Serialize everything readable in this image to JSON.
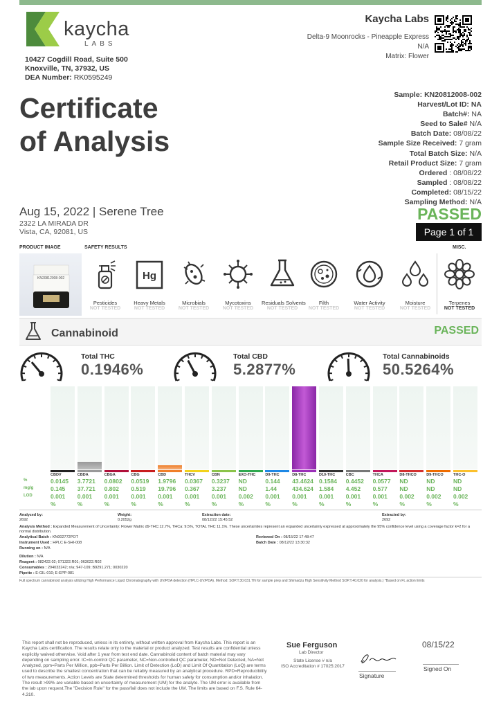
{
  "header": {
    "logo_text": "kaycha",
    "logo_sub": "LABS",
    "address_line1": "10427 Cogdill Road, Suite 500",
    "address_line2": "Knoxville, TN, 37932, US",
    "dea_label": "DEA Number:",
    "dea_value": "RK0595249",
    "lab_name": "Kaycha Labs",
    "product_name": "Delta-9 Moonrocks - Pineapple Express",
    "product_na": "N/A",
    "matrix": "Matrix: Flower"
  },
  "title": {
    "line1": "Certificate",
    "line2": "of Analysis"
  },
  "client": {
    "line": "Aug 15, 2022 | Serene Tree",
    "addr1": "2322 LA MIRADA DR",
    "addr2": "Vista, CA, 92081, US"
  },
  "sample_info": [
    {
      "label": "Sample:",
      "value": "KN20812008-002",
      "bold_value": true
    },
    {
      "label": "Harvest/Lot ID:",
      "value": "NA",
      "bold_value": true
    },
    {
      "label": "Batch#:",
      "value": "NA"
    },
    {
      "label": "Seed to Sale#",
      "value": "N/A"
    },
    {
      "label": "Batch Date:",
      "value": "08/08/22"
    },
    {
      "label": "Sample Size Received:",
      "value": "7 gram"
    },
    {
      "label": "Total Batch Size:",
      "value": "N/A"
    },
    {
      "label": "Retail Product Size:",
      "value": "7 gram"
    },
    {
      "label": "Ordered",
      "value": ": 08/08/22"
    },
    {
      "label": "Sampled",
      "value": ": 08/08/22"
    },
    {
      "label": "Completed:",
      "value": "08/15/22"
    },
    {
      "label": "Sampling Method:",
      "value": "N/A"
    }
  ],
  "status": {
    "overall": "PASSED",
    "page": "Page 1 of 1"
  },
  "sections": {
    "product_image": "PRODUCT IMAGE",
    "safety_results": "SAFETY RESULTS",
    "misc": "MISC."
  },
  "product_label": "KN20812008-002",
  "safety": [
    {
      "name": "Pesticides",
      "status": "NOT TESTED",
      "icon": "pesticide-spray-icon"
    },
    {
      "name": "Heavy Metals",
      "status": "NOT TESTED",
      "icon": "heavy-metals-hg-icon",
      "symbol": "Hg"
    },
    {
      "name": "Microbials",
      "status": "NOT TESTED",
      "icon": "microbe-icon"
    },
    {
      "name": "Mycotoxins",
      "status": "NOT TESTED",
      "icon": "mycotoxin-icon"
    },
    {
      "name": "Residuals Solvents",
      "status": "NOT TESTED",
      "icon": "flask-icon"
    },
    {
      "name": "Filth",
      "status": "NOT TESTED",
      "icon": "petri-dish-icon"
    },
    {
      "name": "Water Activity",
      "status": "NOT TESTED",
      "icon": "water-drop-icon"
    },
    {
      "name": "Moisture",
      "status": "NOT TESTED",
      "icon": "moisture-drops-icon"
    },
    {
      "name": "Terpenes",
      "status": "NOT TESTED",
      "icon": "terpene-flower-icon"
    }
  ],
  "cannabinoid": {
    "title": "Cannabinoid",
    "status": "PASSED",
    "totals": [
      {
        "label": "Total THC",
        "value": "0.1946%"
      },
      {
        "label": "Total CBD",
        "value": "5.2877%"
      },
      {
        "label": "Total Cannabinoids",
        "value": "50.5264%"
      }
    ],
    "row_labels": [
      "%",
      "mg/g",
      "LOD",
      ""
    ],
    "compounds": [
      {
        "name": "CBDV",
        "pct": "0.0145",
        "mg": "0.145",
        "lod": "0.001",
        "unit": "%",
        "color": "#222222",
        "fill": 0
      },
      {
        "name": "CBDA",
        "pct": "3.7721",
        "mg": "37.721",
        "lod": "0.001",
        "unit": "%",
        "color": "#999999",
        "fill": 0.09
      },
      {
        "name": "CBGA",
        "pct": "0.0802",
        "mg": "0.802",
        "lod": "0.001",
        "unit": "%",
        "color": "#b0103a",
        "fill": 0
      },
      {
        "name": "CBG",
        "pct": "0.0519",
        "mg": "0.519",
        "lod": "0.001",
        "unit": "%",
        "color": "#c81e1e",
        "fill": 0
      },
      {
        "name": "CBD",
        "pct": "1.9796",
        "mg": "19.796",
        "lod": "0.001",
        "unit": "%",
        "color": "#f07f2a",
        "fill": 0.05
      },
      {
        "name": "THCV",
        "pct": "0.0367",
        "mg": "0.367",
        "lod": "0.001",
        "unit": "%",
        "color": "#f2d21b",
        "fill": 0
      },
      {
        "name": "CBN",
        "pct": "0.3237",
        "mg": "3.237",
        "lod": "0.001",
        "unit": "%",
        "color": "#8bc34a",
        "fill": 0
      },
      {
        "name": "EXO-THC",
        "pct": "ND",
        "mg": "ND",
        "lod": "0.002",
        "unit": "%",
        "color": "#2fa84f",
        "fill": 0
      },
      {
        "name": "D9-THC",
        "pct": "0.144",
        "mg": "1.44",
        "lod": "0.001",
        "unit": "%",
        "color": "#1e88e5",
        "fill": 0
      },
      {
        "name": "D8-THC",
        "pct": "43.4624",
        "mg": "434.624",
        "lod": "0.001",
        "unit": "%",
        "color": "#9b30b8",
        "fill": 1
      },
      {
        "name": "D10-THC",
        "pct": "0.1584",
        "mg": "1.584",
        "lod": "0.001",
        "unit": "%",
        "color": "#333333",
        "fill": 0
      },
      {
        "name": "CBC",
        "pct": "0.4452",
        "mg": "4.452",
        "lod": "0.001",
        "unit": "%",
        "color": "#777777",
        "fill": 0
      },
      {
        "name": "THCA",
        "pct": "0.0577",
        "mg": "0.577",
        "lod": "0.001",
        "unit": "%",
        "color": "#c2185b",
        "fill": 0
      },
      {
        "name": "D8-THCO",
        "pct": "ND",
        "mg": "ND",
        "lod": "0.002",
        "unit": "%",
        "color": "#d32f2f",
        "fill": 0
      },
      {
        "name": "D9-THCO",
        "pct": "ND",
        "mg": "ND",
        "lod": "0.002",
        "unit": "%",
        "color": "#ef6c00",
        "fill": 0
      },
      {
        "name": "THC-O",
        "pct": "ND",
        "mg": "ND",
        "lod": "0.002",
        "unit": "%",
        "color": "#fbc02d",
        "fill": 0
      }
    ]
  },
  "analysis": {
    "analyzed_by_label": "Analyzed by:",
    "analyzed_by": "2692",
    "weight_label": "Weight:",
    "weight": "0.2052g",
    "extraction_date_label": "Extraction date:",
    "extraction_date": "08/12/22 15:45:52",
    "extracted_by_label": "Extracted by:",
    "extracted_by": "2692",
    "method_label": "Analysis Method :",
    "method_text": "Expanded Measurement of Uncertainty: Flower Matrix d9-THC:12.7%, THCa: 9.5%, TOTAL THC 11.1%. These uncertainties represent an expanded uncertainty expressed at approximately the 95% confidence level using a coverage factor k=2 for a normal distribution.",
    "batch_label": "Analytical Batch :",
    "batch": "KN002772POT",
    "instrument_label": "Instrument Used :",
    "instrument": "HPLC E-SHI-008",
    "running_label": "Running on :",
    "running": "N/A",
    "reviewed_label": "Reviewed On :",
    "reviewed": "08/15/22 17:48:47",
    "batch_date_label": "Batch Date :",
    "batch_date": "08/12/22 13:30:32",
    "dilution_label": "Dilution :",
    "dilution": "N/A",
    "reagent_label": "Reagent :",
    "reagent": "082422.02; 071322.R01; 063022.R02",
    "consumables_label": "Consumables :",
    "consumables": "294033242; n/a; 947-109; B9291.271; 0030220",
    "pipette_label": "Pipette :",
    "pipette": "E-GIL-010; E-EPP-081",
    "footnote": "Full spectrum cannabinoid analysis utilizing High Performance Liquid Chromatography with UV/PDA detection (HPLC-UV/PDA). Method: SOP.T.30.031.TN for sample prep and Shimadzu High Sensitivity Method SOP.T.40.020 for analysis.) *Based on FL action limits"
  },
  "footer": {
    "disclaimer": "This report shall not be reproduced, unless in its entirety, without written approval from Kaycha Labs. This report is an Kaycha Labs certification. The results relate only to the material or product analyzed. Test results are confidential unless explicitly waived otherwise. Void after 1 year from test end date. Cannabinoid content of batch material may vary depending on sampling error. IC=In-control QC parameter, NC=Non-controlled QC parameter, ND=Not Detected, NA=Not Analyzed, ppm=Parts Per Million, ppb=Parts Per Billion. Limit of Detection (LoD) and Limit Of Quantitation (LoQ) are terms used to describe the smallest concentration that can be reliably measured by an analytical procedure. RPD=Reproducibility of two measurements. Action Levels are State determined thresholds for human safety for consumption and/or inhalation. The result >99% are variable based on uncertainty of measurement (UM) for the analyte. The UM error is available from the lab upon request.The \"Decision Rule\" for the pass/fail does not include the UM. The limits are based on F.S. Rule 64-4.310.",
    "signer": "Sue Ferguson",
    "signer_title": "Lab Director",
    "license1": "State License # n/a",
    "license2": "ISO Accreditation # 17025:2017",
    "signature_label": "Signature",
    "date": "08/15/22",
    "signed_on_label": "Signed On",
    "signature_script": "S.Ferguson"
  }
}
